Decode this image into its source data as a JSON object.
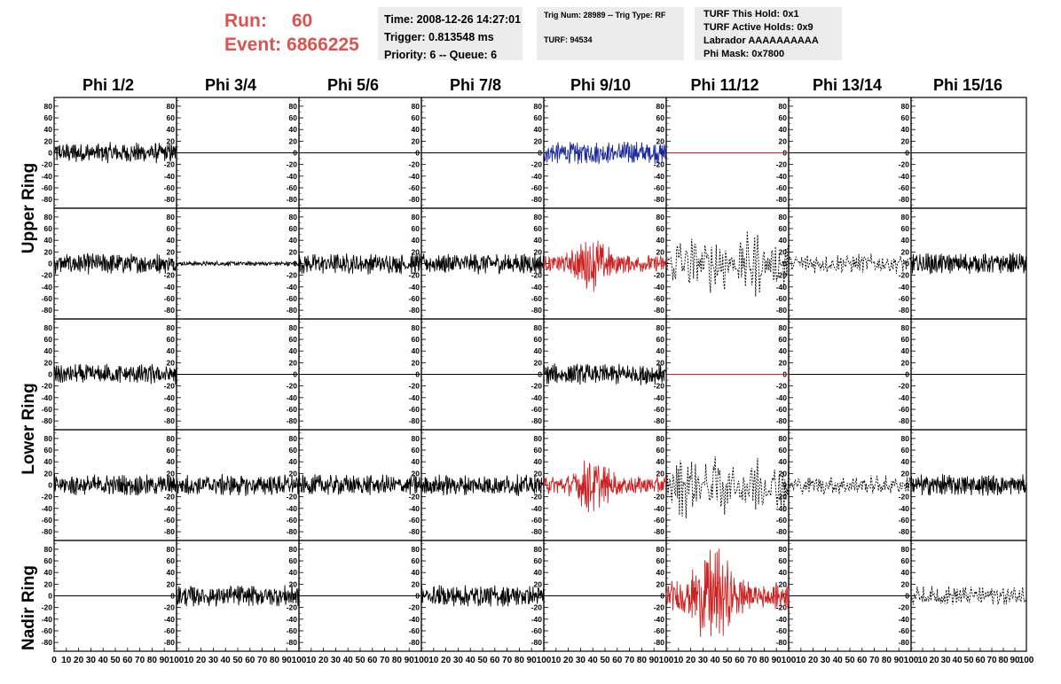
{
  "header": {
    "run_label": "Run:",
    "run_value": "60",
    "event_label": "Event:",
    "event_value": "6866225",
    "accent_color": "#d9534f"
  },
  "info_box_1": {
    "time": "Time: 2008-12-26 14:27:01",
    "trigger": "Trigger: 0.813548 ms",
    "priority": "Priority: 6 -- Queue: 6"
  },
  "info_box_2": {
    "trig": "Trig Num: 28989 -- Trig Type: RF",
    "turf": "TURF: 94534"
  },
  "info_box_3": {
    "hold": "TURF This Hold: 0x1",
    "active": "TURF Active Holds: 0x9",
    "labrador": "Labrador AAAAAAAAAA",
    "phi_mask": "Phi Mask: 0x7800"
  },
  "columns": [
    "Phi 1/2",
    "Phi 3/4",
    "Phi 5/6",
    "Phi 7/8",
    "Phi 9/10",
    "Phi 11/12",
    "Phi 13/14",
    "Phi 15/16"
  ],
  "rings": [
    "Upper Ring",
    "Lower Ring",
    "Nadir Ring"
  ],
  "chart_data": {
    "type": "line",
    "ylim": [
      -95,
      95
    ],
    "xlim": [
      0,
      100
    ],
    "y_ticks": [
      "80",
      "60",
      "40",
      "20",
      "0",
      "-20",
      "-40",
      "-60",
      "-80"
    ],
    "x_ticks_first": [
      "0",
      "10",
      "20",
      "30",
      "40",
      "50",
      "60",
      "70",
      "80",
      "90",
      "100"
    ],
    "x_ticks_rest": [
      "10",
      "20",
      "30",
      "40",
      "50",
      "60",
      "70",
      "80",
      "90",
      "100"
    ],
    "colors": {
      "normal": "#000000",
      "triggered": "#cc2222",
      "blue": "#1a2a9a"
    },
    "panels": [
      [
        "noise",
        "flat",
        "flat",
        "flat",
        "blue",
        "redflat",
        "flat",
        "flat"
      ],
      [
        "noise",
        "small",
        "noise",
        "noise",
        "redsig",
        "dashbig",
        "dashmed",
        "noise"
      ],
      [
        "noise",
        "flat",
        "flat",
        "flat",
        "noise",
        "redflat",
        "flat",
        "flat"
      ],
      [
        "noise",
        "noise",
        "noise",
        "noise",
        "redsig",
        "dashbig",
        "dashmed",
        "noise"
      ],
      [
        "flat",
        "noise",
        "flat",
        "noise",
        "flat",
        "redbig",
        "flat",
        "dashmed"
      ]
    ]
  }
}
